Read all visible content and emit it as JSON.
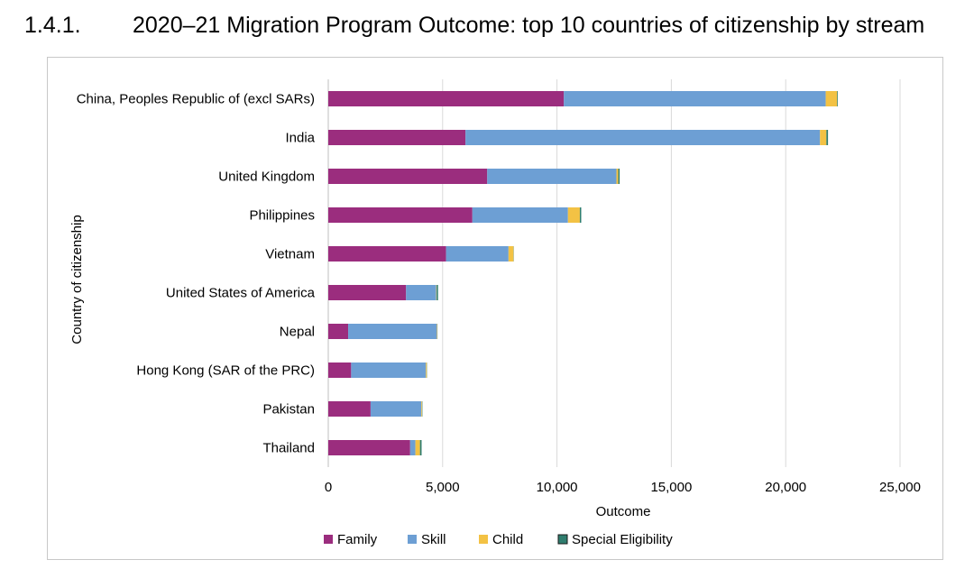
{
  "heading": {
    "number": "1.4.1.",
    "title": "2020–21 Migration Program Outcome: top 10 countries of citizenship by stream"
  },
  "chart_data": {
    "type": "bar",
    "orientation": "horizontal",
    "stacked": true,
    "categories": [
      "China, Peoples Republic of (excl SARs)",
      "India",
      "United Kingdom",
      "Philippines",
      "Vietnam",
      "United States of America",
      "Nepal",
      "Hong Kong (SAR of the PRC)",
      "Pakistan",
      "Thailand"
    ],
    "series": [
      {
        "name": "Family",
        "color": "#9b2d7e",
        "values": [
          10300,
          6000,
          6950,
          6300,
          5150,
          3400,
          870,
          1000,
          1850,
          3580
        ]
      },
      {
        "name": "Skill",
        "color": "#6d9fd4",
        "values": [
          11450,
          15500,
          5650,
          4180,
          2730,
          1320,
          3880,
          3270,
          2220,
          230
        ]
      },
      {
        "name": "Child",
        "color": "#f3c244",
        "values": [
          500,
          280,
          80,
          520,
          220,
          20,
          20,
          40,
          30,
          200
        ]
      },
      {
        "name": "Special Eligibility",
        "color": "#2f7d6e",
        "values": [
          30,
          70,
          60,
          60,
          10,
          60,
          5,
          10,
          15,
          70
        ]
      }
    ],
    "xlabel": "Outcome",
    "ylabel": "Country of citizenship",
    "xlim": [
      0,
      25000
    ],
    "xticks": [
      0,
      5000,
      10000,
      15000,
      20000,
      25000
    ],
    "xtick_labels": [
      "0",
      "5,000",
      "10,000",
      "15,000",
      "20,000",
      "25,000"
    ],
    "grid": "vertical",
    "legend": "bottom"
  }
}
